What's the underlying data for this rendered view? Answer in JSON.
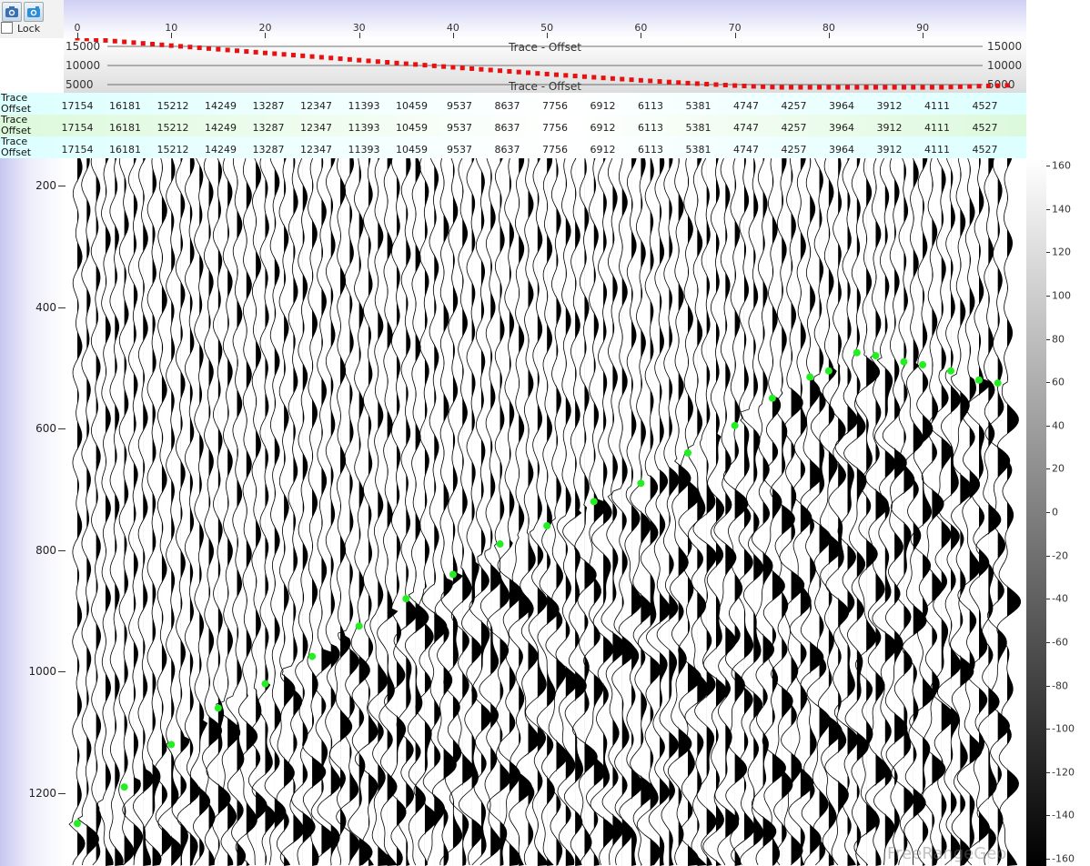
{
  "toolbar": {
    "lock_label": "Lock",
    "lock_checked": false
  },
  "top_axis": {
    "ticks": [
      "0",
      "10",
      "20",
      "30",
      "40",
      "50",
      "60",
      "70",
      "80",
      "90"
    ],
    "trace_min": 0,
    "trace_max": 99
  },
  "offset_plot": {
    "label_upper": "Trace - Offset",
    "label_lower": "Trace - Offset",
    "left_ticks": [
      "15000",
      "10000",
      "5000"
    ],
    "right_ticks": [
      "15000",
      "10000",
      "5000"
    ],
    "colors": {
      "points": "#e81010",
      "gridline": "#444444"
    }
  },
  "header_rows": [
    {
      "label1": "Trace",
      "label2": "Offset",
      "bg": "#dcffff",
      "values": [
        "17154",
        "16181",
        "15212",
        "14249",
        "13287",
        "12347",
        "11393",
        "10459",
        "9537",
        "8637",
        "7756",
        "6912",
        "6113",
        "5381",
        "4747",
        "4257",
        "3964",
        "3912",
        "4111",
        "4527"
      ]
    },
    {
      "label1": "Trace",
      "label2": "Offset",
      "bg": "#dcf9dc",
      "values": [
        "17154",
        "16181",
        "15212",
        "14249",
        "13287",
        "12347",
        "11393",
        "10459",
        "9537",
        "8637",
        "7756",
        "6912",
        "6113",
        "5381",
        "4747",
        "4257",
        "3964",
        "3912",
        "4111",
        "4527"
      ]
    },
    {
      "label1": "Trace",
      "label2": "Offset",
      "bg": "#dcffff",
      "values": [
        "17154",
        "16181",
        "15212",
        "14249",
        "13287",
        "12347",
        "11393",
        "10459",
        "9537",
        "8637",
        "7756",
        "6912",
        "6113",
        "5381",
        "4747",
        "4257",
        "3964",
        "3912",
        "4111",
        "4527"
      ]
    }
  ],
  "time_axis": {
    "ticks": [
      "200",
      "400",
      "600",
      "800",
      "1000",
      "1200"
    ],
    "time_min": 155,
    "time_max": 1320
  },
  "colorbar": {
    "ticks": [
      "160",
      "140",
      "120",
      "100",
      "80",
      "60",
      "40",
      "20",
      "0",
      "-20",
      "-40",
      "-60",
      "-80",
      "-100",
      "-120",
      "-140",
      "-160"
    ],
    "max": 160,
    "min": -160
  },
  "chart_data": {
    "type": "scatter",
    "offset_series": {
      "x": [
        0,
        5,
        10,
        15,
        20,
        25,
        30,
        35,
        40,
        45,
        50,
        55,
        60,
        65,
        70,
        75,
        80,
        85,
        90,
        95,
        99
      ],
      "y": [
        17154,
        16181,
        15212,
        14249,
        13287,
        12347,
        11393,
        10459,
        9537,
        8637,
        7756,
        6912,
        6113,
        5381,
        4747,
        4257,
        3964,
        3912,
        4111,
        4527,
        4800
      ]
    },
    "picks": {
      "color": "#22ee22",
      "x": [
        0,
        5,
        10,
        15,
        20,
        25,
        30,
        35,
        40,
        45,
        50,
        55,
        60,
        65,
        70,
        74,
        78,
        80,
        83,
        85,
        88,
        90,
        93,
        96,
        98
      ],
      "y": [
        1250,
        1190,
        1120,
        1060,
        1020,
        975,
        925,
        880,
        840,
        790,
        760,
        720,
        690,
        640,
        595,
        550,
        515,
        505,
        475,
        480,
        490,
        495,
        505,
        520,
        525
      ]
    }
  },
  "watermark": "FreeRangeGeo"
}
